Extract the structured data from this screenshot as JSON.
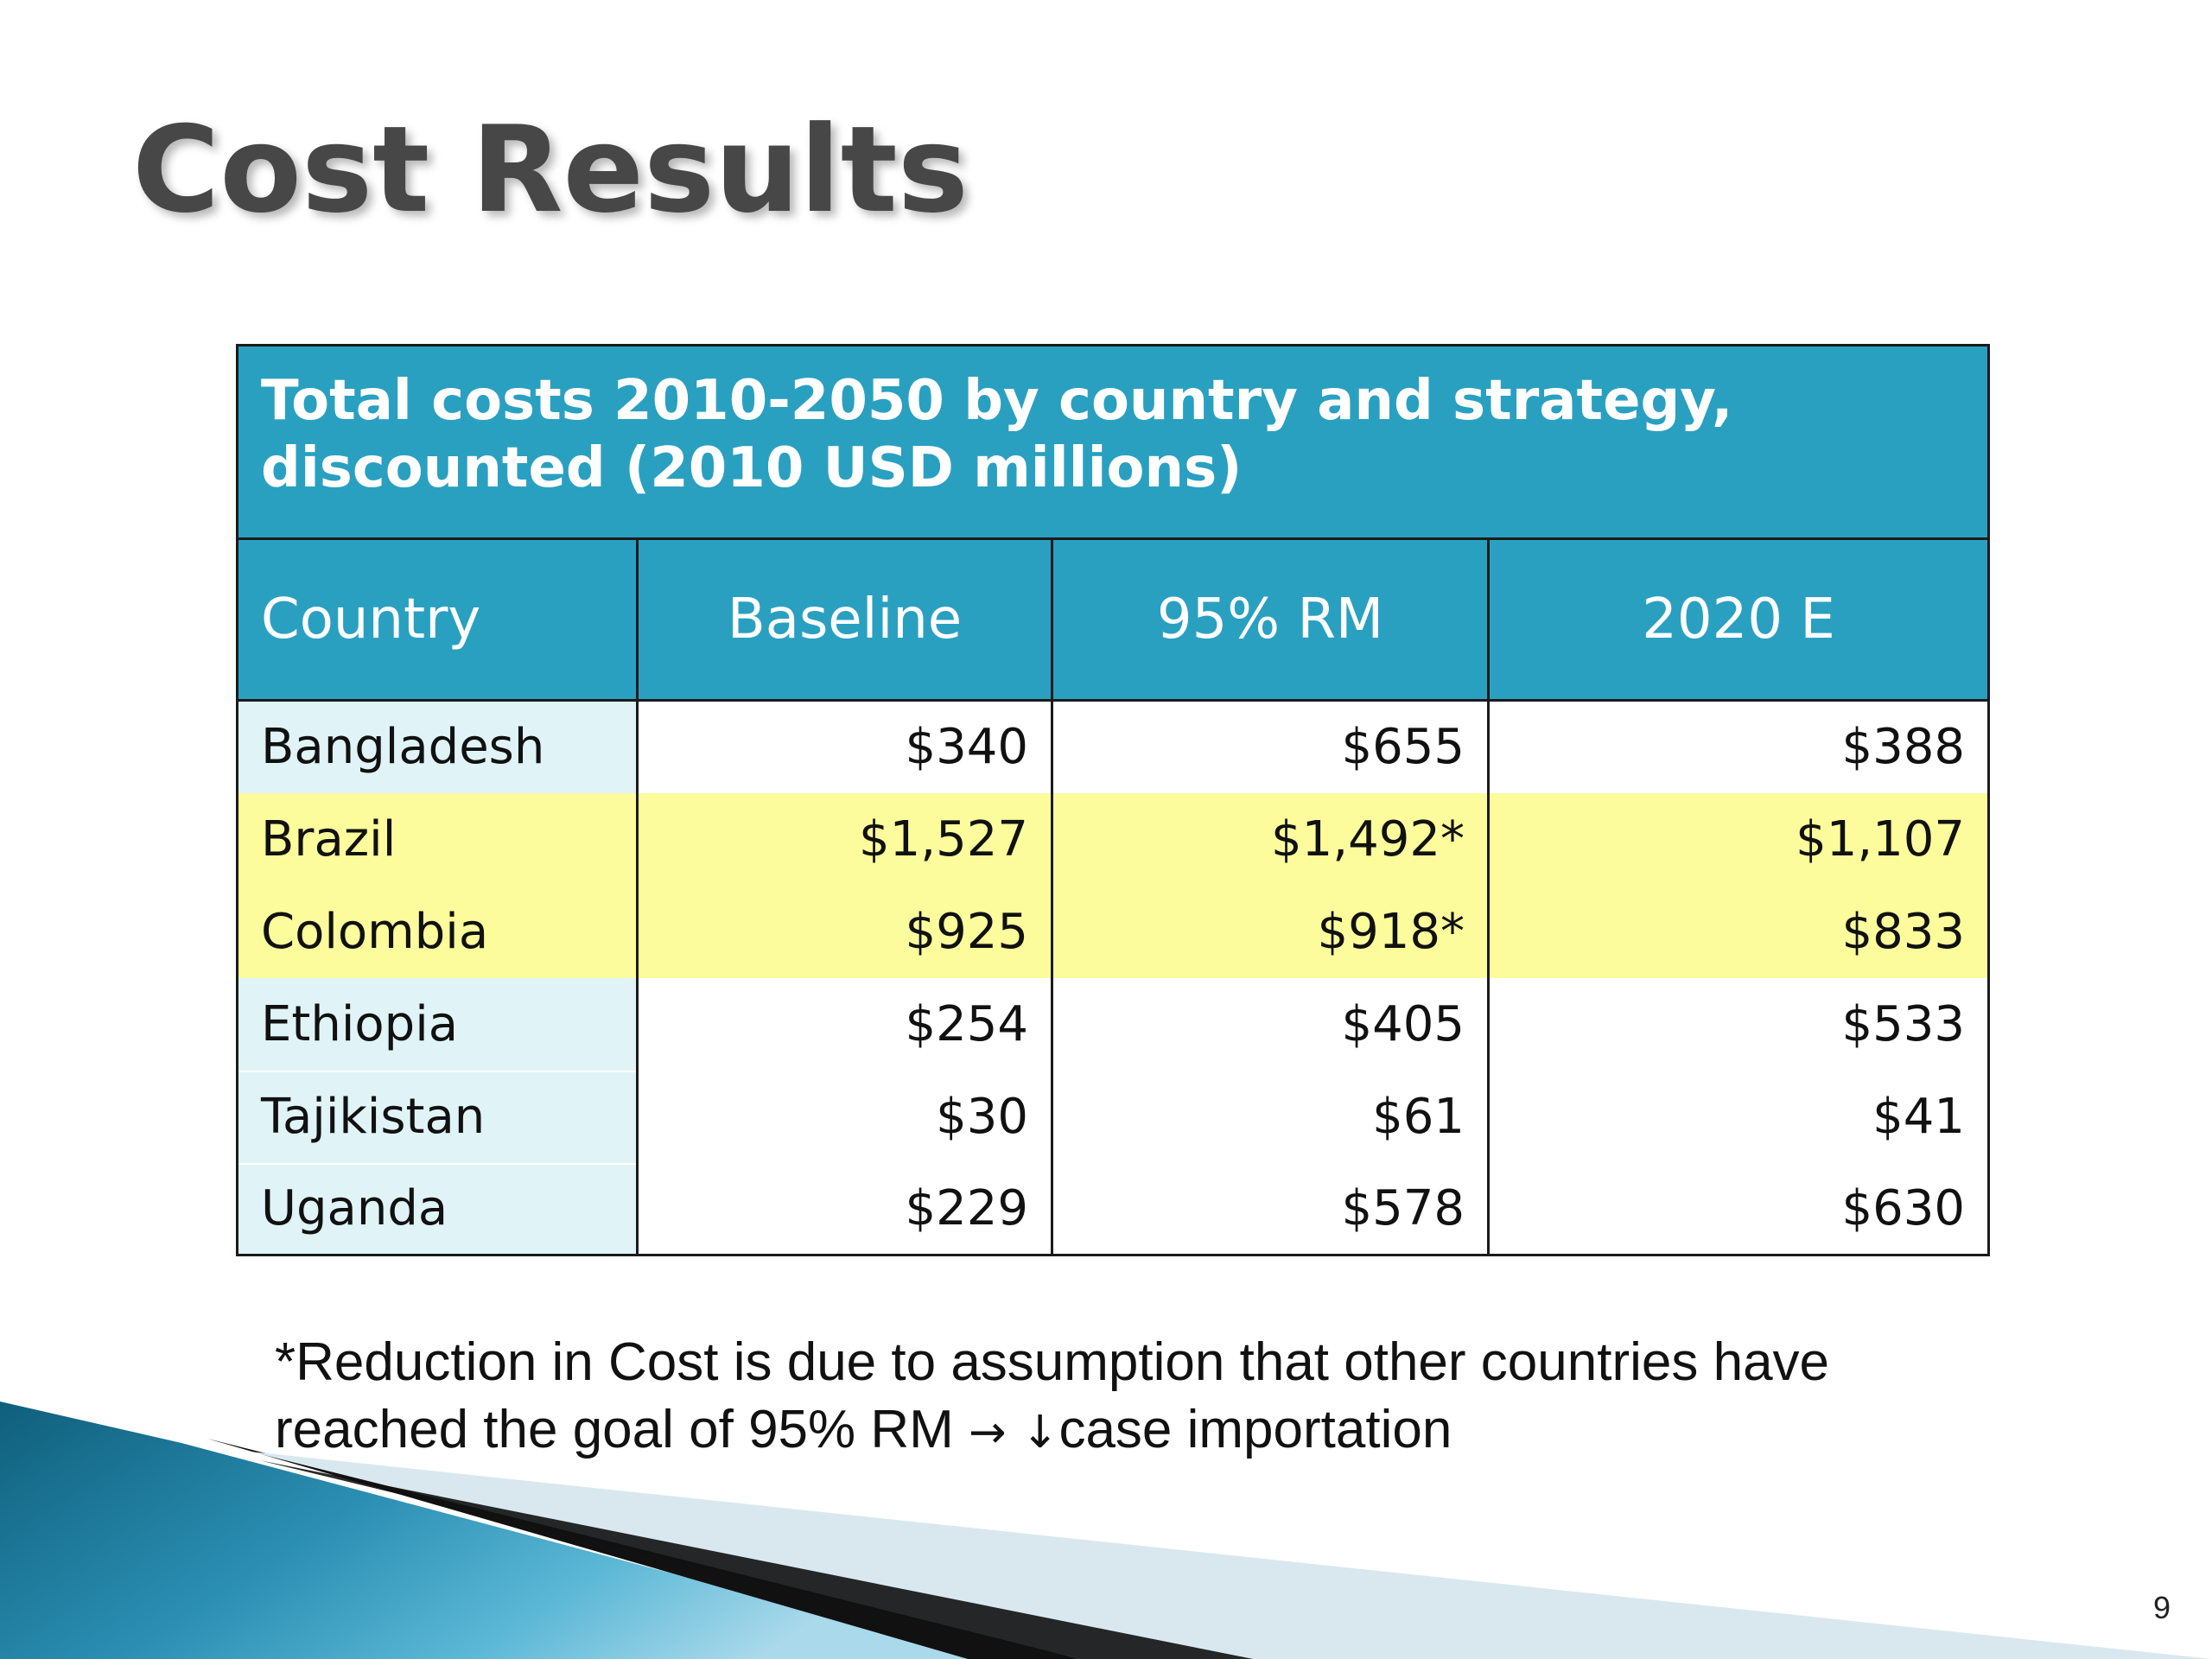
{
  "slide": {
    "title": "Cost Results",
    "page_number": "9"
  },
  "table": {
    "caption": "Total costs 2010-2050 by country and strategy, discounted (2010 USD millions)",
    "headers": {
      "country": "Country",
      "baseline": "Baseline",
      "rm95": "95% RM",
      "e2020": "2020 E"
    },
    "rows": [
      {
        "country": "Bangladesh",
        "baseline": "$340",
        "rm95": "$655",
        "e2020": "$388",
        "highlighted": false
      },
      {
        "country": "Brazil",
        "baseline": "$1,527",
        "rm95": "$1,492*",
        "e2020": "$1,107",
        "highlighted": true
      },
      {
        "country": "Colombia",
        "baseline": "$925",
        "rm95": "$918*",
        "e2020": "$833",
        "highlighted": true
      },
      {
        "country": "Ethiopia",
        "baseline": "$254",
        "rm95": "$405",
        "e2020": "$533",
        "highlighted": false
      },
      {
        "country": "Tajikistan",
        "baseline": "$30",
        "rm95": "$61",
        "e2020": "$41",
        "highlighted": false
      },
      {
        "country": "Uganda",
        "baseline": "$229",
        "rm95": "$578",
        "e2020": "$630",
        "highlighted": false
      }
    ]
  },
  "footnote": {
    "line1": "*Reduction in Cost is due to assumption that other countries have",
    "line2_before": "reached the goal of 95% RM ",
    "arrow_right": "→",
    "arrow_down": "↓",
    "line2_after": "case importation"
  },
  "colors": {
    "header_bg": "#2aa0c1",
    "highlight_row": "#fcfc9c",
    "country_col_bg": "#e0f4f8",
    "title_text": "#474747"
  }
}
